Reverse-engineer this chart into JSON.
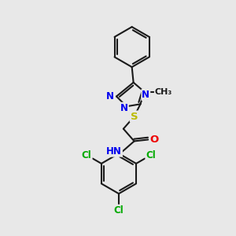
{
  "bg_color": "#e8e8e8",
  "bond_color": "#1a1a1a",
  "bond_width": 1.5,
  "atom_colors": {
    "N": "#0000ee",
    "O": "#ee0000",
    "S": "#bbbb00",
    "Cl": "#00aa00",
    "C": "#1a1a1a",
    "H": "#444444"
  },
  "font_size": 8.5,
  "fig_size": [
    3.0,
    3.0
  ],
  "dpi": 100
}
